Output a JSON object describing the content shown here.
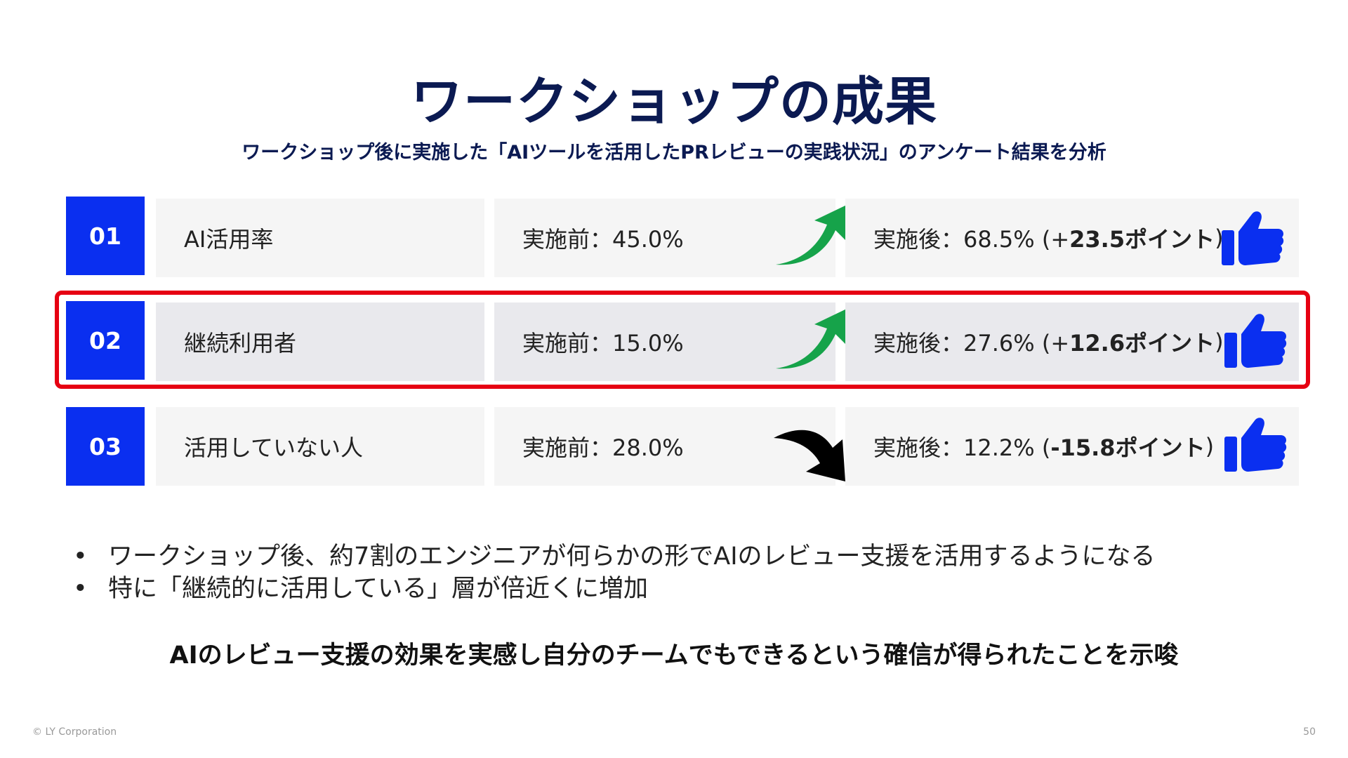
{
  "title": "ワークショップの成果",
  "subtitle": "ワークショップ後に実施した「AIツールを活用したPRレビューの実践状況」のアンケート結果を分析",
  "rows": [
    {
      "num": "01",
      "label": "AI活用率",
      "before": "実施前：45.0%",
      "after_prefix": "実施後：68.5% (+",
      "after_delta": "23.5ポイント",
      "after_suffix": ")",
      "trend": "up",
      "highlighted": false
    },
    {
      "num": "02",
      "label": "継続利用者",
      "before": "実施前：15.0%",
      "after_prefix": "実施後：27.6% (+",
      "after_delta": "12.6ポイント",
      "after_suffix": ")",
      "trend": "up",
      "highlighted": true
    },
    {
      "num": "03",
      "label": "活用していない人",
      "before": "実施前：28.0%",
      "after_prefix": "実施後：12.2% (",
      "after_delta": "-15.8ポイント",
      "after_suffix": ")",
      "trend": "down",
      "highlighted": false
    }
  ],
  "colors": {
    "accent": "#0a2ff0",
    "title": "#0b1a52",
    "up_arrow": "#16a34a",
    "down_arrow": "#000000",
    "highlight": "#e60012"
  },
  "icons": {
    "up": "green-curved-up-arrow-icon",
    "down": "black-curved-down-arrow-icon",
    "result": "thumbs-up-icon"
  },
  "bullets": [
    "ワークショップ後、約7割のエンジニアが何らかの形でAIのレビュー支援を活用するようになる",
    "特に「継続的に活用している」層が倍近くに増加"
  ],
  "bullet_marker": "•",
  "conclusion": "AIのレビュー支援の効果を実感し自分のチームでもできるという確信が得られたことを示唆",
  "footer": "© LY Corporation",
  "page_number": "50"
}
